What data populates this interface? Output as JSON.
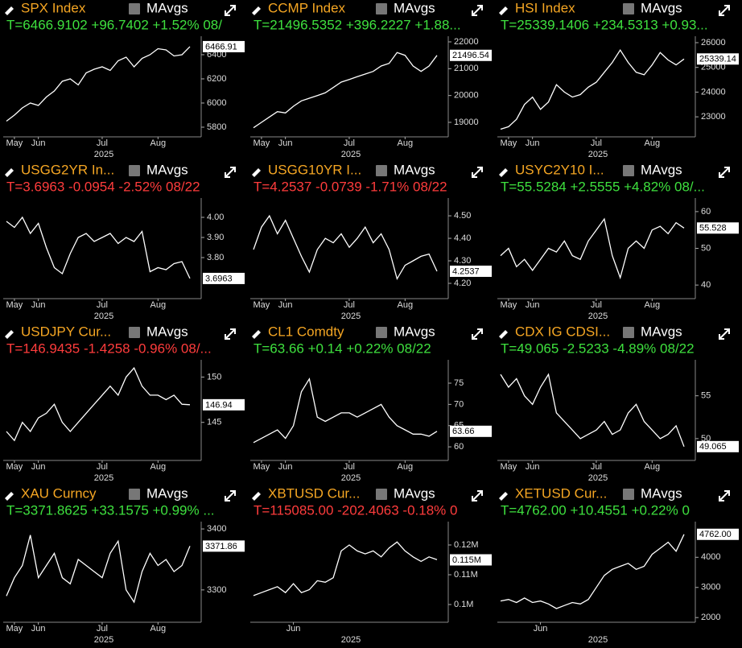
{
  "chart_data": [
    {
      "type": "line",
      "title": "SPX Index",
      "toggle_label": "MAvgs",
      "subtitle": "T=6466.9102 +96.7402 +1.52% 08/",
      "subtitle_color": "#3ee03e",
      "xlabel": "2025",
      "color": "#ffffff",
      "categories": [
        null,
        "May",
        null,
        null,
        "Jun",
        null,
        null,
        null,
        null,
        null,
        null,
        null,
        "Jul",
        null,
        null,
        null,
        null,
        null,
        null,
        "Aug",
        null,
        null,
        null,
        null
      ],
      "values": [
        5850,
        5900,
        5960,
        6000,
        5980,
        6050,
        6100,
        6180,
        6200,
        6150,
        6250,
        6280,
        6300,
        6270,
        6350,
        6380,
        6300,
        6370,
        6400,
        6450,
        6440,
        6390,
        6400,
        6466.9102
      ],
      "ylim": [
        5720,
        6553
      ],
      "yticks": [
        5800,
        6000,
        6200,
        6400
      ],
      "last_value": 6466.91
    },
    {
      "type": "line",
      "title": "CCMP Index",
      "toggle_label": "MAvgs",
      "subtitle": "T=21496.5352 +396.2227 +1.88...",
      "subtitle_color": "#3ee03e",
      "xlabel": "2025",
      "color": "#ffffff",
      "categories": [
        null,
        "May",
        null,
        null,
        "Jun",
        null,
        null,
        null,
        null,
        null,
        null,
        null,
        "Jul",
        null,
        null,
        null,
        null,
        null,
        null,
        "Aug",
        null,
        null,
        null,
        null
      ],
      "values": [
        18800,
        19000,
        19200,
        19400,
        19350,
        19600,
        19800,
        19900,
        20000,
        20100,
        20300,
        20500,
        20600,
        20700,
        20800,
        20900,
        21100,
        21200,
        21600,
        21500,
        21100,
        20900,
        21100,
        21496.5352
      ],
      "ylim": [
        18460,
        22210
      ],
      "yticks": [
        19000,
        20000,
        21000,
        22000
      ],
      "last_value": 21496.54
    },
    {
      "type": "line",
      "title": "HSI Index",
      "toggle_label": "MAvgs",
      "subtitle": "T=25339.1406 +234.5313 +0.93...",
      "subtitle_color": "#3ee03e",
      "xlabel": "2025",
      "color": "#ffffff",
      "categories": [
        null,
        "May",
        null,
        null,
        "Jun",
        null,
        null,
        null,
        null,
        null,
        null,
        null,
        "Jul",
        null,
        null,
        null,
        null,
        null,
        null,
        "Aug",
        null,
        null,
        null,
        null
      ],
      "values": [
        22500,
        22600,
        22900,
        23500,
        23800,
        23300,
        23600,
        24300,
        24000,
        23800,
        23900,
        24200,
        24400,
        24800,
        25200,
        25700,
        25200,
        24800,
        24700,
        25100,
        25600,
        25300,
        25100,
        25339.1406
      ],
      "ylim": [
        22190,
        26260
      ],
      "yticks": [
        23000,
        24000,
        25000,
        26000
      ],
      "last_value": 25339.14
    },
    {
      "type": "line",
      "title": "USGG2YR In...",
      "toggle_label": "MAvgs",
      "subtitle": "T=3.6963 -0.0954 -2.52% 08/22",
      "subtitle_color": "#ff3c3c",
      "xlabel": "2025",
      "color": "#ffffff",
      "categories": [
        null,
        "May",
        null,
        null,
        "Jun",
        null,
        null,
        null,
        null,
        null,
        null,
        null,
        "Jul",
        null,
        null,
        null,
        null,
        null,
        null,
        "Aug",
        null,
        null,
        null,
        null
      ],
      "values": [
        3.98,
        3.95,
        4.0,
        3.92,
        3.97,
        3.85,
        3.75,
        3.72,
        3.82,
        3.9,
        3.92,
        3.88,
        3.9,
        3.92,
        3.87,
        3.9,
        3.88,
        3.93,
        3.73,
        3.75,
        3.74,
        3.77,
        3.78,
        3.6963
      ],
      "ylim": [
        3.596,
        4.096
      ],
      "yticks": [
        {
          "value": 3.8,
          "label": "3.80"
        },
        {
          "value": 3.9,
          "label": "3.90"
        },
        {
          "value": 4,
          "label": "4.00"
        }
      ],
      "last_value": 3.6963
    },
    {
      "type": "line",
      "title": "USGG10YR I...",
      "toggle_label": "MAvgs",
      "subtitle": "T=4.2537 -0.0739 -1.71% 08/22",
      "subtitle_color": "#ff3c3c",
      "xlabel": "2025",
      "color": "#ffffff",
      "categories": [
        null,
        "May",
        null,
        null,
        "Jun",
        null,
        null,
        null,
        null,
        null,
        null,
        null,
        "Jul",
        null,
        null,
        null,
        null,
        null,
        null,
        "Aug",
        null,
        null,
        null,
        null
      ],
      "values": [
        4.35,
        4.45,
        4.5,
        4.42,
        4.48,
        4.4,
        4.32,
        4.25,
        4.35,
        4.4,
        4.38,
        4.42,
        4.36,
        4.4,
        4.45,
        4.38,
        4.42,
        4.35,
        4.22,
        4.28,
        4.3,
        4.32,
        4.33,
        4.2537
      ],
      "ylim": [
        4.132,
        4.579
      ],
      "yticks": [
        {
          "value": 4.2,
          "label": "4.20"
        },
        {
          "value": 4.3,
          "label": "4.30"
        },
        {
          "value": 4.4,
          "label": "4.40"
        },
        {
          "value": 4.5,
          "label": "4.50"
        }
      ],
      "last_value": 4.2537
    },
    {
      "type": "line",
      "title": "USYC2Y10 I...",
      "toggle_label": "MAvgs",
      "subtitle": "T=55.5284 +2.5555 +4.82% 08/...",
      "subtitle_color": "#3ee03e",
      "xlabel": "2025",
      "color": "#ffffff",
      "categories": [
        null,
        "May",
        null,
        null,
        "Jun",
        null,
        null,
        null,
        null,
        null,
        null,
        null,
        "Jul",
        null,
        null,
        null,
        null,
        null,
        null,
        "Aug",
        null,
        null,
        null,
        null
      ],
      "values": [
        48,
        50,
        45,
        47,
        44,
        47,
        50,
        49,
        52,
        48,
        47,
        52,
        55,
        58,
        48,
        42,
        50,
        52,
        50,
        55,
        56,
        54,
        57,
        55.5284
      ],
      "ylim": [
        36.3,
        63.7
      ],
      "yticks": [
        40,
        50,
        60
      ],
      "last_value": 55.528
    },
    {
      "type": "line",
      "title": "USDJPY Cur...",
      "toggle_label": "MAvgs",
      "subtitle": "T=146.9435 -1.4258 -0.96% 08/...",
      "subtitle_color": "#ff3c3c",
      "xlabel": "2025",
      "color": "#ffffff",
      "categories": [
        null,
        "May",
        null,
        null,
        "Jun",
        null,
        null,
        null,
        null,
        null,
        null,
        null,
        "Jul",
        null,
        null,
        null,
        null,
        null,
        null,
        "Aug",
        null,
        null,
        null,
        null
      ],
      "values": [
        144,
        143,
        145,
        144,
        145.5,
        146,
        147,
        145,
        144,
        145,
        146,
        147,
        148,
        149,
        148,
        150,
        151,
        149,
        148,
        148,
        147.5,
        148,
        147,
        146.9435
      ],
      "ylim": [
        140.8,
        151.9
      ],
      "yticks": [
        145,
        150
      ],
      "last_value": 146.94
    },
    {
      "type": "line",
      "title": "CL1 Comdty",
      "toggle_label": "MAvgs",
      "subtitle": "T=63.66 +0.14 +0.22% 08/22",
      "subtitle_color": "#3ee03e",
      "xlabel": "2025",
      "color": "#ffffff",
      "categories": [
        null,
        "May",
        null,
        null,
        "Jun",
        null,
        null,
        null,
        null,
        null,
        null,
        null,
        "Jul",
        null,
        null,
        null,
        null,
        null,
        null,
        "Aug",
        null,
        null,
        null,
        null
      ],
      "values": [
        61,
        62,
        63,
        64,
        62,
        65,
        73,
        76,
        67,
        66,
        67,
        68,
        68,
        67,
        68,
        69,
        70,
        67,
        65,
        64,
        63,
        63,
        62.5,
        63.66
      ],
      "ylim": [
        56.8,
        80.5
      ],
      "yticks": [
        60,
        65,
        70,
        75
      ],
      "last_value": 63.66
    },
    {
      "type": "line",
      "title": "CDX IG CDSI...",
      "toggle_label": "MAvgs",
      "subtitle": "T=49.065 -2.5233 -4.89% 08/22",
      "subtitle_color": "#3ee03e",
      "xlabel": "2025",
      "color": "#ffffff",
      "categories": [
        null,
        "May",
        null,
        null,
        "Jun",
        null,
        null,
        null,
        null,
        null,
        null,
        null,
        "Jul",
        null,
        null,
        null,
        null,
        null,
        null,
        "Aug",
        null,
        null,
        null,
        null
      ],
      "values": [
        57.5,
        56,
        57,
        55,
        54,
        56,
        57.5,
        53,
        52,
        51,
        50,
        50.5,
        51,
        52,
        50.5,
        51,
        53,
        54,
        52,
        51,
        50,
        50.5,
        51.5,
        49.065
      ],
      "ylim": [
        47.45,
        59.2
      ],
      "yticks": [
        50,
        55
      ],
      "last_value": 49.065
    },
    {
      "type": "line",
      "title": "XAU Curncy",
      "toggle_label": "MAvgs",
      "subtitle": "T=3371.8625 +33.1575 +0.99% ...",
      "subtitle_color": "#3ee03e",
      "xlabel": "2025",
      "color": "#ffffff",
      "categories": [
        null,
        "May",
        null,
        null,
        "Jun",
        null,
        null,
        null,
        null,
        null,
        null,
        null,
        "Jul",
        null,
        null,
        null,
        null,
        null,
        null,
        "Aug",
        null,
        null,
        null,
        null
      ],
      "values": [
        3290,
        3320,
        3340,
        3390,
        3320,
        3340,
        3360,
        3320,
        3310,
        3350,
        3340,
        3330,
        3320,
        3360,
        3380,
        3300,
        3280,
        3330,
        3360,
        3340,
        3350,
        3330,
        3340,
        3371.8625
      ],
      "ylim": [
        3247,
        3412
      ],
      "yticks": [
        3300,
        3400
      ],
      "last_value": 3371.86
    },
    {
      "type": "line",
      "title": "XBTUSD Cur...",
      "toggle_label": "MAvgs",
      "subtitle": "T=115085.00 -202.4063 -0.18% 0",
      "subtitle_color": "#ff3c3c",
      "xlabel": "2025",
      "color": "#ffffff",
      "categories": [
        null,
        null,
        null,
        null,
        null,
        "Jun",
        null,
        null,
        null,
        null,
        null,
        null,
        null,
        null,
        null,
        null,
        null,
        null,
        null,
        null,
        null,
        null,
        null,
        null
      ],
      "values": [
        103000,
        104000,
        105000,
        106000,
        104000,
        107000,
        104000,
        105000,
        108000,
        107500,
        109000,
        118000,
        120000,
        118000,
        117000,
        118000,
        116000,
        119000,
        121000,
        118000,
        116000,
        114500,
        116000,
        115085
      ],
      "ylim": [
        94054,
        127838
      ],
      "yticks": [
        {
          "value": 100000,
          "label": "0.1M"
        },
        {
          "value": 110000,
          "label": "0.11M"
        },
        {
          "value": 120000,
          "label": "0.12M"
        }
      ],
      "last_value": {
        "value": 115000,
        "label": "0.115M"
      }
    },
    {
      "type": "line",
      "title": "XETUSD Cur...",
      "toggle_label": "MAvgs",
      "subtitle": "T=4762.00 +10.4551 +0.22% 0",
      "subtitle_color": "#3ee03e",
      "xlabel": "2025",
      "color": "#ffffff",
      "categories": [
        null,
        null,
        null,
        null,
        null,
        "Jun",
        null,
        null,
        null,
        null,
        null,
        null,
        null,
        null,
        null,
        null,
        null,
        null,
        null,
        null,
        null,
        null,
        null,
        null
      ],
      "values": [
        2550,
        2600,
        2500,
        2650,
        2500,
        2550,
        2450,
        2300,
        2400,
        2500,
        2450,
        2600,
        3000,
        3400,
        3600,
        3700,
        3800,
        3600,
        3700,
        4100,
        4300,
        4500,
        4200,
        4762
      ],
      "ylim": [
        1845,
        5183
      ],
      "yticks": [
        2000,
        3000,
        4000
      ],
      "last_value": {
        "value": 4762,
        "label": "4762.00"
      }
    }
  ]
}
